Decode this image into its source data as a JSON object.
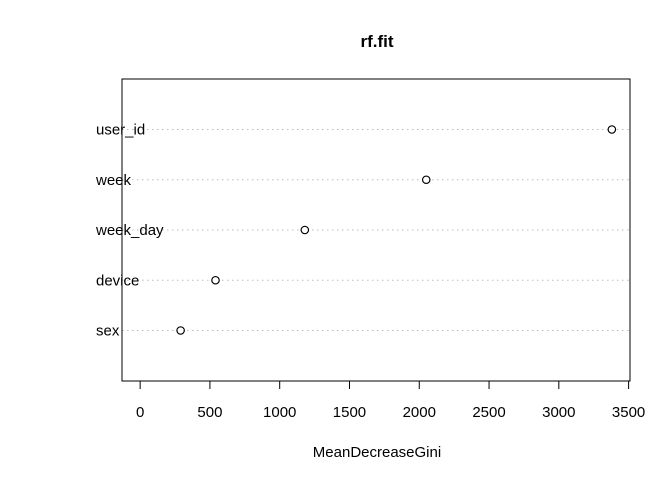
{
  "chart_data": {
    "type": "scatter",
    "title": "rf.fit",
    "xlabel": "MeanDecreaseGini",
    "ylabel": "",
    "categories": [
      "user_id",
      "week",
      "week_day",
      "device",
      "sex"
    ],
    "values": [
      3380,
      2050,
      1180,
      540,
      290
    ],
    "xlim": [
      -130,
      3510
    ],
    "x_ticks": [
      0,
      500,
      1000,
      1500,
      2000,
      2500,
      3000,
      3500
    ],
    "grid": "dotted horizontal",
    "legend": "none"
  }
}
